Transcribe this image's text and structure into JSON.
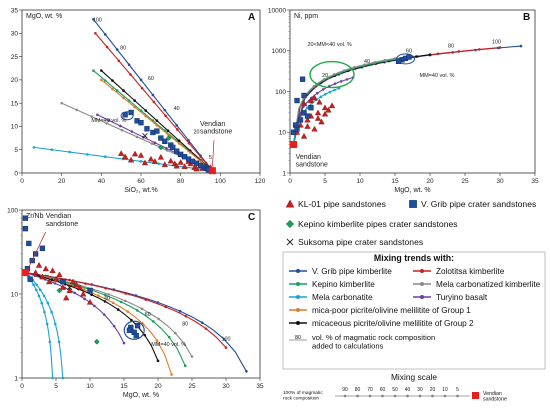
{
  "colors": {
    "grib": "#1f4e9e",
    "zolotitsa": "#c8201e",
    "kepino": "#17a05a",
    "mela_carb_kimb": "#8a8a8a",
    "mela_carbonatite": "#19a3d2",
    "turyino": "#6a3fa0",
    "mica_poor": "#e07b28",
    "micaceous": "#111111",
    "kl01": "#c8201e",
    "vendian": "#e81f1f",
    "highlight": "#1ea84a"
  },
  "chart_data": [
    {
      "id": "A",
      "type": "scatter",
      "panel_label": "A",
      "ylabel": "MgO, wt. %",
      "xlabel": "SiO₂, wt.%",
      "xlim": [
        0,
        120
      ],
      "ylim": [
        0,
        35
      ],
      "xticks": [
        "0",
        "20",
        "40",
        "60",
        "80",
        "100",
        "120"
      ],
      "yticks": [
        "0",
        "5",
        "10",
        "15",
        "20",
        "25",
        "30",
        "35"
      ],
      "annotations": {
        "vendian": "Vendian\nsandstone",
        "mm": "MM=40 vol. %"
      },
      "endpoint": [
        96,
        0.5
      ],
      "lines": [
        {
          "key": "grib",
          "marker": "circle",
          "x": [
            36,
            96
          ],
          "y": [
            33,
            0.5
          ]
        },
        {
          "key": "zolotitsa",
          "marker": "circle",
          "x": [
            37,
            96
          ],
          "y": [
            30,
            0.5
          ]
        },
        {
          "key": "kepino",
          "marker": "circle",
          "x": [
            36,
            96
          ],
          "y": [
            22,
            0.5
          ]
        },
        {
          "key": "micaceous",
          "marker": "circle",
          "x": [
            40,
            96
          ],
          "y": [
            22,
            0.5
          ]
        },
        {
          "key": "mica_poor",
          "marker": "circle",
          "x": [
            40,
            96
          ],
          "y": [
            20,
            0.5
          ]
        },
        {
          "key": "mela_carb_kimb",
          "marker": "circle",
          "x": [
            20,
            96
          ],
          "y": [
            15,
            0.5
          ]
        },
        {
          "key": "turyino",
          "marker": "circle",
          "x": [
            38,
            96
          ],
          "y": [
            12.5,
            0.5
          ]
        },
        {
          "key": "mela_carbonatite",
          "marker": "circle",
          "x": [
            6,
            96
          ],
          "y": [
            5.5,
            0.5
          ]
        }
      ],
      "line_labels": [
        {
          "text": "100",
          "x": 38,
          "y": 32.5
        },
        {
          "text": "80",
          "x": 51,
          "y": 26.5
        },
        {
          "text": "60",
          "x": 65,
          "y": 20
        },
        {
          "text": "40",
          "x": 78,
          "y": 13.5
        },
        {
          "text": "20",
          "x": 88,
          "y": 8.5
        },
        {
          "text": "5",
          "x": 95,
          "y": 3
        }
      ],
      "kl01": {
        "x": [
          50,
          52,
          55,
          57,
          60,
          62,
          65,
          67,
          70,
          72,
          75,
          77,
          78,
          80,
          82,
          84,
          85,
          87,
          88,
          90,
          91,
          93,
          94,
          95
        ],
        "y": [
          4.2,
          3.5,
          2.8,
          4.1,
          3.8,
          2.2,
          3.0,
          2.5,
          3.4,
          1.8,
          2.6,
          2.0,
          1.5,
          2.3,
          1.4,
          2.5,
          2.0,
          1.2,
          0.9,
          1.6,
          1.0,
          1.8,
          0.8,
          1.2
        ]
      },
      "grib_pts": {
        "x": [
          52,
          55,
          58,
          60,
          63,
          66,
          68,
          70,
          72,
          75,
          76,
          78,
          80,
          82,
          84,
          86,
          88,
          90,
          92,
          93,
          94
        ],
        "y": [
          12.5,
          13.0,
          11.2,
          10.8,
          9.5,
          8.7,
          9.0,
          7.5,
          6.8,
          6.0,
          5.5,
          4.7,
          4.0,
          3.5,
          3.0,
          2.5,
          2.1,
          1.6,
          1.3,
          1.0,
          0.7
        ]
      },
      "kepino_pts": {
        "x": [
          70,
          74
        ],
        "y": [
          5.5,
          7.5
        ]
      },
      "suksoma_pts": {
        "x": [
          62
        ],
        "y": [
          8
        ]
      }
    },
    {
      "id": "B",
      "type": "scatter",
      "panel_label": "B",
      "ylabel": "Ni, ppm",
      "xlabel": "MgO, wt. %",
      "xscale": "linear",
      "yscale": "log",
      "xlim": [
        0,
        35
      ],
      "ylim": [
        1,
        10000
      ],
      "xticks": [
        "0",
        "5",
        "10",
        "15",
        "20",
        "25",
        "30",
        "35"
      ],
      "yticks": [
        "1",
        "10",
        "100",
        "1000",
        "10000"
      ],
      "annotations": {
        "vendian": "Vendian\nsandstone",
        "mm20": "20<MM<40 vol. %",
        "mm": "MM=40 vol. %"
      },
      "lines": [
        {
          "key": "grib",
          "x": [
            0.5,
            33
          ],
          "y": [
            5,
            1300
          ]
        },
        {
          "key": "zolotitsa",
          "x": [
            0.5,
            30
          ],
          "y": [
            5,
            1200
          ]
        },
        {
          "key": "micaceous",
          "x": [
            0.5,
            20
          ],
          "y": [
            5,
            800
          ]
        },
        {
          "key": "kepino",
          "x": [
            0.5,
            17
          ],
          "y": [
            5,
            700
          ]
        },
        {
          "key": "mela_carb_kimb",
          "x": [
            0.5,
            15
          ],
          "y": [
            5,
            650
          ]
        },
        {
          "key": "turyino",
          "x": [
            0.5,
            9
          ],
          "y": [
            5,
            220
          ]
        },
        {
          "key": "mela_carbonatite",
          "x": [
            0.5,
            7
          ],
          "y": [
            5,
            120
          ]
        }
      ],
      "line_labels": [
        {
          "text": "100",
          "x": 29.5,
          "y": 1500
        },
        {
          "text": "80",
          "x": 23,
          "y": 1200
        },
        {
          "text": "60",
          "x": 17,
          "y": 900
        },
        {
          "text": "40",
          "x": 11,
          "y": 500
        },
        {
          "text": "20",
          "x": 5,
          "y": 230
        }
      ],
      "kl01": {
        "x": [
          1,
          1.5,
          2,
          2.5,
          3,
          3.5,
          4,
          4.5,
          5,
          5.5,
          2,
          3,
          4,
          5,
          6,
          3.5,
          2.5,
          4.2
        ],
        "y": [
          10,
          15,
          8,
          20,
          25,
          12,
          30,
          18,
          40,
          35,
          50,
          60,
          22,
          28,
          45,
          70,
          14,
          55
        ]
      },
      "grib_pts": {
        "x": [
          0.5,
          1,
          1.5,
          2,
          2.5,
          3,
          1,
          2,
          16,
          16.5,
          17,
          15.5,
          0.8,
          1.8
        ],
        "y": [
          10,
          12,
          20,
          30,
          25,
          40,
          60,
          80,
          600,
          650,
          700,
          550,
          15,
          200
        ]
      }
    },
    {
      "id": "C",
      "type": "scatter",
      "panel_label": "C",
      "ylabel": "Zr/Nb",
      "xlabel": "MgO, wt. %",
      "xscale": "linear",
      "yscale": "log",
      "xlim": [
        0,
        35
      ],
      "ylim": [
        1,
        100
      ],
      "xticks": [
        "0",
        "5",
        "10",
        "15",
        "20",
        "25",
        "30",
        "35"
      ],
      "yticks": [
        "1",
        "10",
        "100"
      ],
      "annotations": {
        "vendian": "Vendian\nsandstone",
        "mm": "MM=40 vol. %"
      },
      "lines": [
        {
          "key": "grib",
          "x": [
            0.5,
            33
          ],
          "y": [
            18,
            1.2
          ]
        },
        {
          "key": "zolotitsa",
          "x": [
            0.5,
            30
          ],
          "y": [
            18,
            2.3
          ]
        },
        {
          "key": "mela_carb_kimb",
          "x": [
            0.5,
            25
          ],
          "y": [
            18,
            1.8
          ]
        },
        {
          "key": "kepino",
          "x": [
            0.5,
            24
          ],
          "y": [
            18,
            1.4
          ]
        },
        {
          "key": "mica_poor",
          "x": [
            0.5,
            22
          ],
          "y": [
            18,
            1.1
          ]
        },
        {
          "key": "micaceous",
          "x": [
            0.5,
            20
          ],
          "y": [
            18,
            1.6
          ]
        },
        {
          "key": "turyino",
          "x": [
            0.5,
            15
          ],
          "y": [
            18,
            2.6
          ]
        },
        {
          "key": "mela_carbonatite",
          "x": [
            0.5,
            6
          ],
          "y": [
            18,
            1.0
          ]
        },
        {
          "key": "mela_carbonatite",
          "x": [
            0.5,
            4.5
          ],
          "y": [
            18,
            1.0
          ]
        }
      ],
      "line_labels": [
        {
          "text": "40",
          "x": 12.5,
          "y": 8.5
        },
        {
          "text": "60",
          "x": 18.5,
          "y": 5.5
        },
        {
          "text": "80",
          "x": 24,
          "y": 4.2
        },
        {
          "text": "100",
          "x": 30,
          "y": 2.8
        }
      ],
      "kl01": {
        "x": [
          2,
          3,
          4,
          5,
          6,
          7,
          8,
          9,
          3.5,
          5.5,
          6.5,
          2.5,
          4.5,
          7.5,
          8.5,
          10
        ],
        "y": [
          18,
          16,
          14,
          15,
          12,
          11,
          13,
          10,
          20,
          17,
          9,
          22,
          19,
          14,
          12,
          8
        ]
      },
      "grib_pts": {
        "x": [
          0.5,
          1,
          1.5,
          2,
          0.8,
          1.2,
          3,
          16,
          16.5,
          17,
          15.8,
          16.8,
          0.5,
          6,
          10
        ],
        "y": [
          60,
          40,
          25,
          30,
          20,
          15,
          35,
          4,
          3.5,
          4.2,
          3.7,
          3.2,
          80,
          14,
          11
        ]
      },
      "kepino_pts": {
        "x": [
          5.5,
          11
        ],
        "y": [
          11,
          2.7
        ]
      },
      "suksoma_pts": {
        "x": [
          7
        ],
        "y": [
          12
        ]
      }
    }
  ],
  "legend": {
    "kl01": "KL-01 pipe sandstones",
    "grib_crater": "V. Grib pipe crater sandstones",
    "kepino_pipes": "Kepino kimberlite pipes crater sandstones",
    "suksoma": "Suksoma pipe crater sandstones",
    "mixing_title": "Mixing trends with:",
    "grib_kimb": "V. Grib pipe kimberlite",
    "zolotitsa": "Zolotitsa kimberlite",
    "kepino_kimb": "Kepino kimberlite",
    "mela_carb_kimb": "Mela carbonatized kimberlite",
    "mela_carbonatite": "Mela carbonatite",
    "turyino": "Turyino basalt",
    "mica_poor": "mica-poor picrite/olivine melilitite of Group 1",
    "micaceous": "micaceous picrite/olivine melilitite of Group 2",
    "vol_note_num": "80",
    "vol_note": "vol. % of magmatic rock composition\nadded to calculations",
    "scale_title": "Mixing scale",
    "scale_left": "100% of magmatic\nrock composition",
    "scale_ticks": [
      "90",
      "80",
      "70",
      "60",
      "50",
      "40",
      "30",
      "20",
      "10",
      "5"
    ],
    "scale_right": "Vendian\nsandstone"
  }
}
